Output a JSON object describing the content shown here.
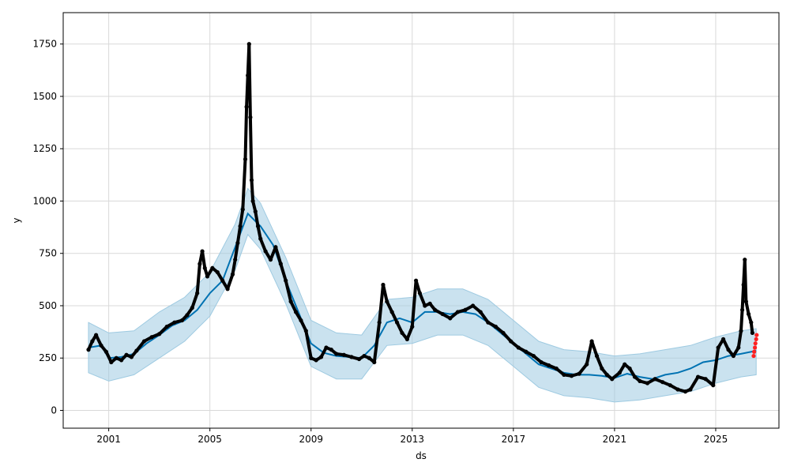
{
  "chart_data": {
    "type": "scatter",
    "xlabel": "ds",
    "ylabel": "y",
    "xlim": [
      1999.2,
      2027.5
    ],
    "ylim": [
      -85,
      1900
    ],
    "grid": true,
    "x_ticks": [
      2001,
      2005,
      2009,
      2013,
      2017,
      2021,
      2025
    ],
    "y_ticks": [
      0,
      250,
      500,
      750,
      1000,
      1250,
      1500,
      1750
    ],
    "colors": {
      "observed": "#000000",
      "forecast": "#0072b2",
      "interval": "#9ecae1",
      "recent": "#ff2020",
      "grid": "#d9d9d9"
    },
    "series": [
      {
        "role": "observed",
        "points": [
          [
            2000.2,
            290
          ],
          [
            2000.35,
            330
          ],
          [
            2000.5,
            360
          ],
          [
            2000.7,
            310
          ],
          [
            2000.9,
            280
          ],
          [
            2001.1,
            230
          ],
          [
            2001.3,
            250
          ],
          [
            2001.5,
            240
          ],
          [
            2001.7,
            265
          ],
          [
            2001.9,
            255
          ],
          [
            2002.1,
            285
          ],
          [
            2002.4,
            330
          ],
          [
            2002.7,
            350
          ],
          [
            2003.0,
            365
          ],
          [
            2003.3,
            400
          ],
          [
            2003.6,
            420
          ],
          [
            2003.9,
            430
          ],
          [
            2004.1,
            455
          ],
          [
            2004.3,
            490
          ],
          [
            2004.5,
            560
          ],
          [
            2004.6,
            700
          ],
          [
            2004.7,
            760
          ],
          [
            2004.8,
            680
          ],
          [
            2004.9,
            640
          ],
          [
            2005.1,
            680
          ],
          [
            2005.3,
            660
          ],
          [
            2005.5,
            620
          ],
          [
            2005.7,
            580
          ],
          [
            2005.9,
            650
          ],
          [
            2006.0,
            720
          ],
          [
            2006.1,
            800
          ],
          [
            2006.2,
            880
          ],
          [
            2006.3,
            960
          ],
          [
            2006.4,
            1200
          ],
          [
            2006.45,
            1450
          ],
          [
            2006.5,
            1600
          ],
          [
            2006.55,
            1750
          ],
          [
            2006.6,
            1400
          ],
          [
            2006.65,
            1100
          ],
          [
            2006.7,
            1000
          ],
          [
            2006.8,
            950
          ],
          [
            2006.9,
            880
          ],
          [
            2007.0,
            820
          ],
          [
            2007.2,
            760
          ],
          [
            2007.4,
            720
          ],
          [
            2007.6,
            780
          ],
          [
            2007.8,
            700
          ],
          [
            2008.0,
            620
          ],
          [
            2008.2,
            520
          ],
          [
            2008.4,
            470
          ],
          [
            2008.6,
            430
          ],
          [
            2008.8,
            380
          ],
          [
            2009.0,
            250
          ],
          [
            2009.2,
            240
          ],
          [
            2009.4,
            255
          ],
          [
            2009.6,
            300
          ],
          [
            2009.8,
            290
          ],
          [
            2010.0,
            270
          ],
          [
            2010.3,
            265
          ],
          [
            2010.6,
            255
          ],
          [
            2010.9,
            245
          ],
          [
            2011.1,
            260
          ],
          [
            2011.3,
            250
          ],
          [
            2011.5,
            230
          ],
          [
            2011.7,
            420
          ],
          [
            2011.85,
            600
          ],
          [
            2012.0,
            520
          ],
          [
            2012.2,
            470
          ],
          [
            2012.4,
            420
          ],
          [
            2012.6,
            370
          ],
          [
            2012.8,
            340
          ],
          [
            2013.0,
            400
          ],
          [
            2013.15,
            620
          ],
          [
            2013.3,
            560
          ],
          [
            2013.5,
            500
          ],
          [
            2013.7,
            510
          ],
          [
            2013.9,
            480
          ],
          [
            2014.2,
            460
          ],
          [
            2014.5,
            440
          ],
          [
            2014.8,
            470
          ],
          [
            2015.1,
            480
          ],
          [
            2015.4,
            500
          ],
          [
            2015.7,
            470
          ],
          [
            2016.0,
            420
          ],
          [
            2016.3,
            400
          ],
          [
            2016.6,
            370
          ],
          [
            2016.9,
            330
          ],
          [
            2017.2,
            300
          ],
          [
            2017.5,
            280
          ],
          [
            2017.8,
            260
          ],
          [
            2018.1,
            230
          ],
          [
            2018.4,
            215
          ],
          [
            2018.7,
            200
          ],
          [
            2019.0,
            170
          ],
          [
            2019.3,
            165
          ],
          [
            2019.6,
            175
          ],
          [
            2019.9,
            220
          ],
          [
            2020.1,
            330
          ],
          [
            2020.3,
            260
          ],
          [
            2020.5,
            200
          ],
          [
            2020.7,
            170
          ],
          [
            2020.9,
            150
          ],
          [
            2021.2,
            180
          ],
          [
            2021.4,
            220
          ],
          [
            2021.6,
            200
          ],
          [
            2021.8,
            160
          ],
          [
            2022.0,
            140
          ],
          [
            2022.3,
            130
          ],
          [
            2022.6,
            150
          ],
          [
            2022.9,
            135
          ],
          [
            2023.2,
            120
          ],
          [
            2023.5,
            100
          ],
          [
            2023.8,
            90
          ],
          [
            2024.0,
            100
          ],
          [
            2024.3,
            160
          ],
          [
            2024.6,
            150
          ],
          [
            2024.9,
            120
          ],
          [
            2025.1,
            300
          ],
          [
            2025.3,
            340
          ],
          [
            2025.5,
            290
          ],
          [
            2025.7,
            260
          ],
          [
            2025.9,
            300
          ],
          [
            2026.0,
            380
          ],
          [
            2026.05,
            480
          ],
          [
            2026.1,
            600
          ],
          [
            2026.15,
            720
          ],
          [
            2026.2,
            520
          ],
          [
            2026.3,
            460
          ],
          [
            2026.4,
            420
          ],
          [
            2026.45,
            370
          ]
        ]
      },
      {
        "role": "recent",
        "points": [
          [
            2026.5,
            260
          ],
          [
            2026.52,
            280
          ],
          [
            2026.55,
            300
          ],
          [
            2026.57,
            320
          ],
          [
            2026.6,
            340
          ],
          [
            2026.62,
            360
          ]
        ]
      },
      {
        "role": "forecast",
        "points": [
          [
            2000.2,
            300
          ],
          [
            2000.7,
            310
          ],
          [
            2001.0,
            250
          ],
          [
            2001.5,
            255
          ],
          [
            2002.0,
            270
          ],
          [
            2002.5,
            320
          ],
          [
            2003.0,
            360
          ],
          [
            2003.5,
            405
          ],
          [
            2004.0,
            430
          ],
          [
            2004.5,
            480
          ],
          [
            2005.0,
            560
          ],
          [
            2005.5,
            620
          ],
          [
            2006.0,
            780
          ],
          [
            2006.5,
            940
          ],
          [
            2007.0,
            880
          ],
          [
            2007.5,
            790
          ],
          [
            2008.0,
            620
          ],
          [
            2008.5,
            470
          ],
          [
            2009.0,
            320
          ],
          [
            2009.5,
            275
          ],
          [
            2010.0,
            260
          ],
          [
            2010.5,
            255
          ],
          [
            2011.0,
            250
          ],
          [
            2011.5,
            310
          ],
          [
            2012.0,
            420
          ],
          [
            2012.5,
            440
          ],
          [
            2013.0,
            420
          ],
          [
            2013.5,
            470
          ],
          [
            2014.0,
            470
          ],
          [
            2014.5,
            460
          ],
          [
            2015.0,
            470
          ],
          [
            2015.5,
            460
          ],
          [
            2016.0,
            420
          ],
          [
            2016.5,
            370
          ],
          [
            2017.0,
            320
          ],
          [
            2017.5,
            270
          ],
          [
            2018.0,
            220
          ],
          [
            2018.5,
            200
          ],
          [
            2019.0,
            180
          ],
          [
            2019.5,
            170
          ],
          [
            2020.0,
            170
          ],
          [
            2020.5,
            165
          ],
          [
            2021.0,
            155
          ],
          [
            2021.5,
            175
          ],
          [
            2022.0,
            160
          ],
          [
            2022.5,
            150
          ],
          [
            2023.0,
            170
          ],
          [
            2023.5,
            180
          ],
          [
            2024.0,
            200
          ],
          [
            2024.5,
            230
          ],
          [
            2025.0,
            240
          ],
          [
            2025.5,
            260
          ],
          [
            2026.0,
            270
          ],
          [
            2026.6,
            285
          ]
        ],
        "interval": [
          [
            2000.2,
            180,
            420
          ],
          [
            2001.0,
            140,
            370
          ],
          [
            2002.0,
            170,
            380
          ],
          [
            2003.0,
            250,
            470
          ],
          [
            2004.0,
            330,
            540
          ],
          [
            2005.0,
            450,
            660
          ],
          [
            2006.0,
            670,
            890
          ],
          [
            2006.5,
            840,
            1060
          ],
          [
            2007.0,
            770,
            990
          ],
          [
            2008.0,
            510,
            730
          ],
          [
            2009.0,
            210,
            430
          ],
          [
            2010.0,
            150,
            370
          ],
          [
            2011.0,
            150,
            360
          ],
          [
            2012.0,
            310,
            530
          ],
          [
            2013.0,
            320,
            540
          ],
          [
            2014.0,
            360,
            580
          ],
          [
            2015.0,
            360,
            580
          ],
          [
            2016.0,
            310,
            530
          ],
          [
            2017.0,
            210,
            430
          ],
          [
            2018.0,
            110,
            330
          ],
          [
            2019.0,
            70,
            290
          ],
          [
            2020.0,
            60,
            280
          ],
          [
            2021.0,
            40,
            260
          ],
          [
            2022.0,
            50,
            270
          ],
          [
            2023.0,
            70,
            290
          ],
          [
            2024.0,
            90,
            310
          ],
          [
            2025.0,
            130,
            350
          ],
          [
            2026.0,
            160,
            380
          ],
          [
            2026.6,
            170,
            390
          ]
        ]
      }
    ]
  }
}
